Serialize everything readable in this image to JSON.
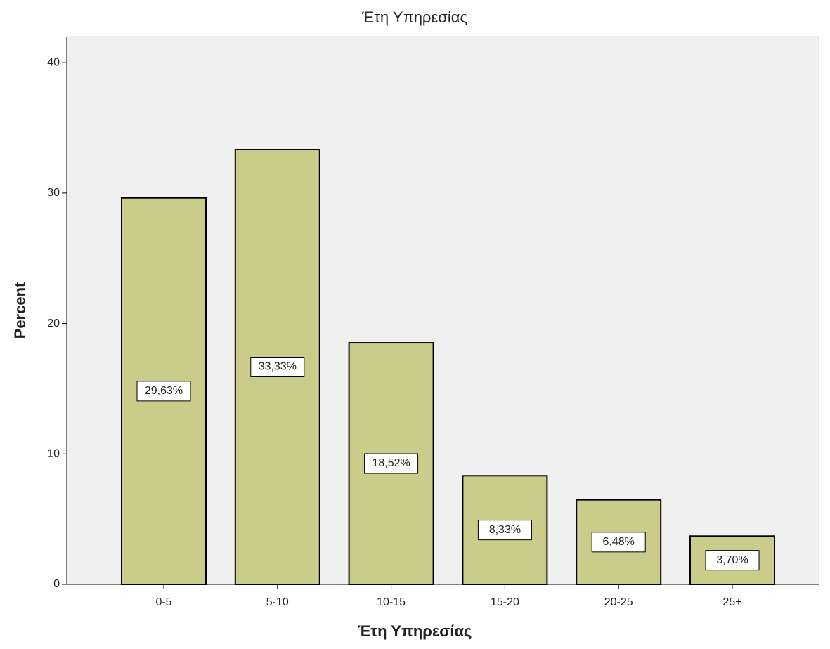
{
  "chart_data": {
    "type": "bar",
    "title": "Έτη Υπηρεσίας",
    "x_label": "Έτη Υπηρεσίας",
    "y_label": "Percent",
    "categories": [
      "0-5",
      "5-10",
      "10-15",
      "15-20",
      "20-25",
      "25+"
    ],
    "values": [
      29.63,
      33.33,
      18.52,
      8.33,
      6.48,
      3.7
    ],
    "value_labels": [
      "29,63%",
      "33,33%",
      "18,52%",
      "8,33%",
      "6,48%",
      "3,70%"
    ],
    "color": "#cccc8a",
    "ylim": [
      0,
      42
    ],
    "yticks": [
      0,
      10,
      20,
      30,
      40
    ]
  }
}
